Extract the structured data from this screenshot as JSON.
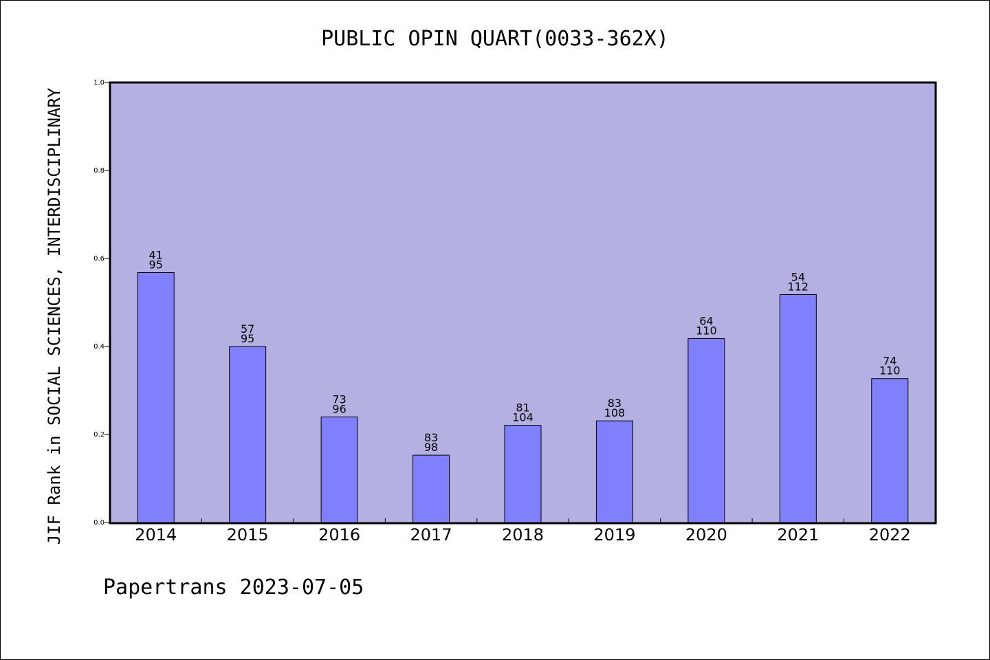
{
  "chart_data": {
    "type": "bar",
    "title": "PUBLIC OPIN QUART(0033-362X)",
    "xlabel": "",
    "ylabel": "JIF Rank in SOCIAL SCIENCES, INTERDISCIPLINARY",
    "ylim": [
      0,
      1.0
    ],
    "yticks": [
      "0.0",
      "0.2",
      "0.4",
      "0.6",
      "0.8",
      "1.0"
    ],
    "categories": [
      "2014",
      "2015",
      "2016",
      "2017",
      "2018",
      "2019",
      "2020",
      "2021",
      "2022"
    ],
    "values": [
      0.568,
      0.4,
      0.24,
      0.153,
      0.221,
      0.231,
      0.418,
      0.518,
      0.327
    ],
    "rank": [
      "41",
      "57",
      "73",
      "83",
      "81",
      "83",
      "64",
      "54",
      "74"
    ],
    "total": [
      "95",
      "95",
      "96",
      "98",
      "104",
      "108",
      "110",
      "112",
      "110"
    ],
    "grid": false,
    "colors": {
      "plot_bg": "#b5b0e2",
      "bar": "#8080fd",
      "axis": "#000000"
    }
  },
  "footer": "Papertrans 2023-07-05"
}
